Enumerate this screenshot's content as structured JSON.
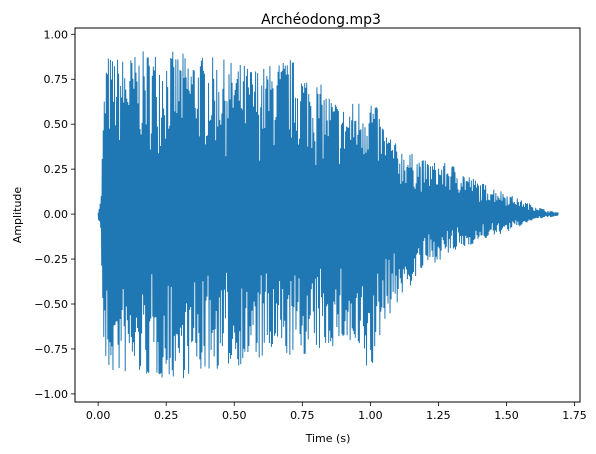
{
  "chart_data": {
    "type": "line",
    "title": "Archéodong.mp3",
    "xlabel": "Time (s)",
    "ylabel": "Amplitude",
    "xlim": [
      -0.085,
      1.77
    ],
    "ylim": [
      -1.045,
      1.035
    ],
    "x_ticks": [
      {
        "value": 0.0,
        "label": "0.00"
      },
      {
        "value": 0.25,
        "label": "0.25"
      },
      {
        "value": 0.5,
        "label": "0.50"
      },
      {
        "value": 0.75,
        "label": "0.75"
      },
      {
        "value": 1.0,
        "label": "1.00"
      },
      {
        "value": 1.25,
        "label": "1.25"
      },
      {
        "value": 1.5,
        "label": "1.50"
      },
      {
        "value": 1.75,
        "label": "1.75"
      }
    ],
    "y_ticks": [
      {
        "value": -1.0,
        "label": "−1.00"
      },
      {
        "value": -0.75,
        "label": "−0.75"
      },
      {
        "value": -0.5,
        "label": "−0.50"
      },
      {
        "value": -0.25,
        "label": "−0.25"
      },
      {
        "value": 0.0,
        "label": "0.00"
      },
      {
        "value": 0.25,
        "label": "0.25"
      },
      {
        "value": 0.5,
        "label": "0.50"
      },
      {
        "value": 0.75,
        "label": "0.75"
      },
      {
        "value": 1.0,
        "label": "1.00"
      }
    ],
    "grid": false,
    "series": [
      {
        "color": "#1f77b4",
        "duration_s": 1.69,
        "envelope": {
          "t": [
            0.0,
            0.01,
            0.02,
            0.03,
            0.05,
            0.1,
            0.2,
            0.3,
            0.4,
            0.5,
            0.6,
            0.7,
            0.8,
            0.9,
            1.0,
            1.05,
            1.1,
            1.2,
            1.3,
            1.4,
            1.5,
            1.55,
            1.6,
            1.65,
            1.69
          ],
          "max": [
            0.02,
            0.08,
            0.6,
            0.9,
            0.88,
            0.88,
            0.92,
            0.9,
            0.88,
            0.85,
            0.82,
            0.88,
            0.75,
            0.6,
            0.68,
            0.5,
            0.38,
            0.3,
            0.28,
            0.18,
            0.12,
            0.08,
            0.05,
            0.02,
            0.01
          ],
          "min": [
            -0.02,
            -0.1,
            -0.8,
            -0.92,
            -0.9,
            -0.9,
            -0.92,
            -0.92,
            -0.88,
            -0.85,
            -0.82,
            -0.8,
            -0.78,
            -0.72,
            -0.93,
            -0.6,
            -0.5,
            -0.3,
            -0.22,
            -0.15,
            -0.1,
            -0.07,
            -0.03,
            -0.02,
            -0.01
          ]
        }
      }
    ]
  }
}
